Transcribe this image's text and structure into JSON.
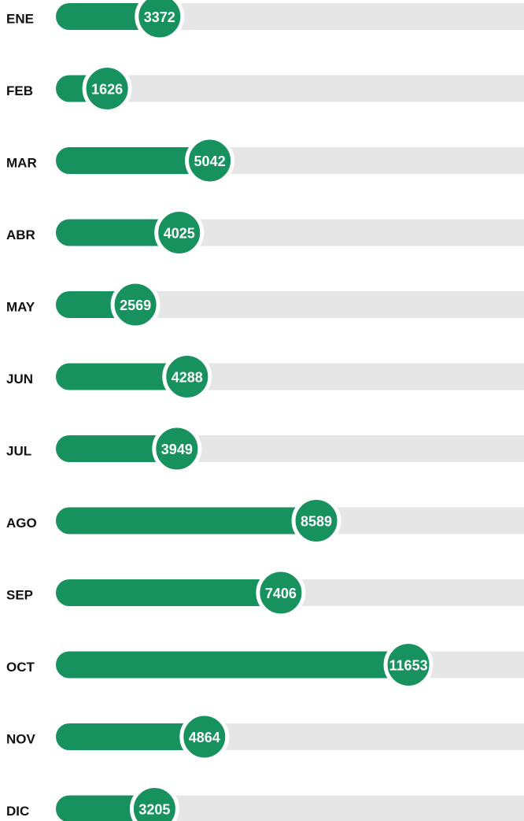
{
  "chart_data": {
    "type": "bar",
    "categories": [
      "ENE",
      "FEB",
      "MAR",
      "ABR",
      "MAY",
      "JUN",
      "JUL",
      "AGO",
      "SEP",
      "OCT",
      "NOV",
      "DIC"
    ],
    "values": [
      3372,
      1626,
      5042,
      4025,
      2569,
      4288,
      3949,
      8589,
      7406,
      11653,
      4864,
      3205
    ],
    "color": "#17925e",
    "track_color": "#e6e6e6",
    "xlim": [
      0,
      15500
    ]
  }
}
